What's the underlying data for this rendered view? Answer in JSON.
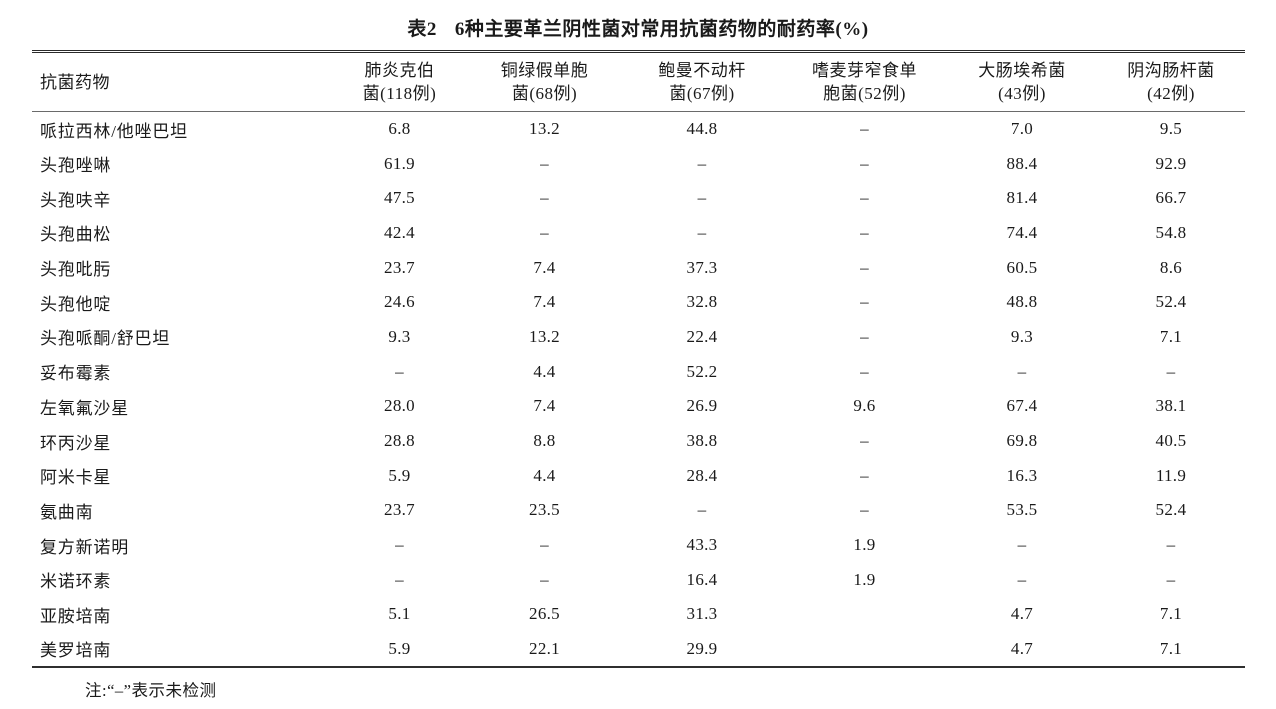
{
  "page": {
    "title_label": "表2",
    "title_text": "6种主要革兰阴性菌对常用抗菌药物的耐药率(%)",
    "footnote": "注:“–”表示未检测",
    "not_tested_symbol": "–"
  },
  "table": {
    "header": [
      {
        "line1": "抗菌药物",
        "line2": ""
      },
      {
        "line1": "肺炎克伯",
        "line2": "菌(118例)"
      },
      {
        "line1": "铜绿假单胞",
        "line2": "菌(68例)"
      },
      {
        "line1": "鲍曼不动杆",
        "line2": "菌(67例)"
      },
      {
        "line1": "嗜麦芽窄食单",
        "line2": "胞菌(52例)"
      },
      {
        "line1": "大肠埃希菌",
        "line2": "(43例)"
      },
      {
        "line1": "阴沟肠杆菌",
        "line2": "(42例)"
      }
    ],
    "rows": [
      {
        "drug": "哌拉西林/他唑巴坦",
        "values": [
          "6.8",
          "13.2",
          "44.8",
          "–",
          "7.0",
          "9.5"
        ]
      },
      {
        "drug": "头孢唑啉",
        "values": [
          "61.9",
          "–",
          "–",
          "–",
          "88.4",
          "92.9"
        ]
      },
      {
        "drug": "头孢呋辛",
        "values": [
          "47.5",
          "–",
          "–",
          "–",
          "81.4",
          "66.7"
        ]
      },
      {
        "drug": "头孢曲松",
        "values": [
          "42.4",
          "–",
          "–",
          "–",
          "74.4",
          "54.8"
        ]
      },
      {
        "drug": "头孢吡肟",
        "values": [
          "23.7",
          "7.4",
          "37.3",
          "–",
          "60.5",
          "8.6"
        ]
      },
      {
        "drug": "头孢他啶",
        "values": [
          "24.6",
          "7.4",
          "32.8",
          "–",
          "48.8",
          "52.4"
        ]
      },
      {
        "drug": "头孢哌酮/舒巴坦",
        "values": [
          "9.3",
          "13.2",
          "22.4",
          "–",
          "9.3",
          "7.1"
        ]
      },
      {
        "drug": "妥布霉素",
        "values": [
          "–",
          "4.4",
          "52.2",
          "–",
          "–",
          "–"
        ]
      },
      {
        "drug": "左氧氟沙星",
        "values": [
          "28.0",
          "7.4",
          "26.9",
          "9.6",
          "67.4",
          "38.1"
        ]
      },
      {
        "drug": "环丙沙星",
        "values": [
          "28.8",
          "8.8",
          "38.8",
          "–",
          "69.8",
          "40.5"
        ]
      },
      {
        "drug": "阿米卡星",
        "values": [
          "5.9",
          "4.4",
          "28.4",
          "–",
          "16.3",
          "11.9"
        ]
      },
      {
        "drug": "氨曲南",
        "values": [
          "23.7",
          "23.5",
          "–",
          "–",
          "53.5",
          "52.4"
        ]
      },
      {
        "drug": "复方新诺明",
        "values": [
          "–",
          "–",
          "43.3",
          "1.9",
          "–",
          "–"
        ]
      },
      {
        "drug": "米诺环素",
        "values": [
          "–",
          "–",
          "16.4",
          "1.9",
          "–",
          "–"
        ]
      },
      {
        "drug": "亚胺培南",
        "values": [
          "5.1",
          "26.5",
          "31.3",
          "",
          "4.7",
          "7.1"
        ]
      },
      {
        "drug": "美罗培南",
        "values": [
          "5.9",
          "22.1",
          "29.9",
          "",
          "4.7",
          "7.1"
        ]
      }
    ]
  }
}
